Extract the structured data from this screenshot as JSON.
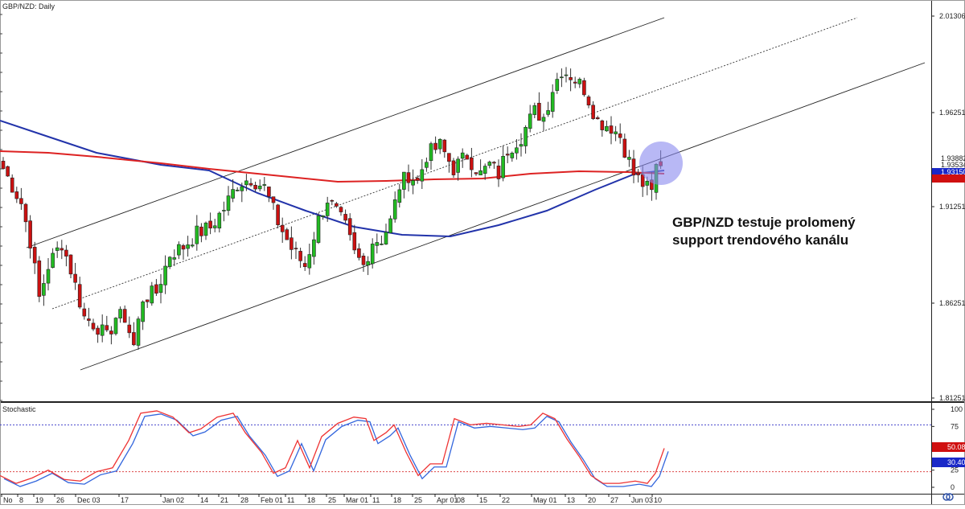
{
  "chart_data": {
    "type": "candlestick",
    "title": "GBP/NZD: Daily",
    "annotation": "GBP/NZD testuje prolomený\nsupport trendového kanálu",
    "x_ticks": [
      "No",
      "8",
      "19",
      "26",
      "Dec 03",
      "17",
      "Jan 02",
      "14",
      "21",
      "28",
      "Feb 01",
      "11",
      "18",
      "25",
      "Mar 01",
      "11",
      "18",
      "25",
      "Apr 01",
      "08",
      "15",
      "22",
      "May 01",
      "13",
      "20",
      "27",
      "Jun 03",
      "10"
    ],
    "y_ticks": [
      "2.01306",
      "1.96251",
      "1.91251",
      "1.86251",
      "1.81251"
    ],
    "price_labels": [
      {
        "text": "1.93882",
        "kind": "plain"
      },
      {
        "text": "1.93534",
        "kind": "plain"
      },
      {
        "text": "1.93150",
        "kind": "blue"
      },
      {
        "text": "",
        "kind": "red"
      }
    ],
    "ylim": [
      1.8,
      2.025
    ],
    "stochastic": {
      "label": "Stochastic",
      "y_ticks": [
        "100",
        "75",
        "25",
        "0"
      ],
      "levels": [
        80,
        20
      ],
      "value_labels": [
        {
          "text": "50.08",
          "kind": "red"
        },
        {
          "text": "30.40",
          "kind": "blue"
        }
      ]
    },
    "colors": {
      "up": "#22bb22",
      "down": "#cc1111",
      "ma_blue": "#2233aa",
      "ma_red": "#dd2222",
      "stoch_k": "#3366dd",
      "stoch_d": "#ee3333",
      "level": "#4444cc",
      "level_low": "#dd4444",
      "highlight": "#8888ee"
    }
  }
}
